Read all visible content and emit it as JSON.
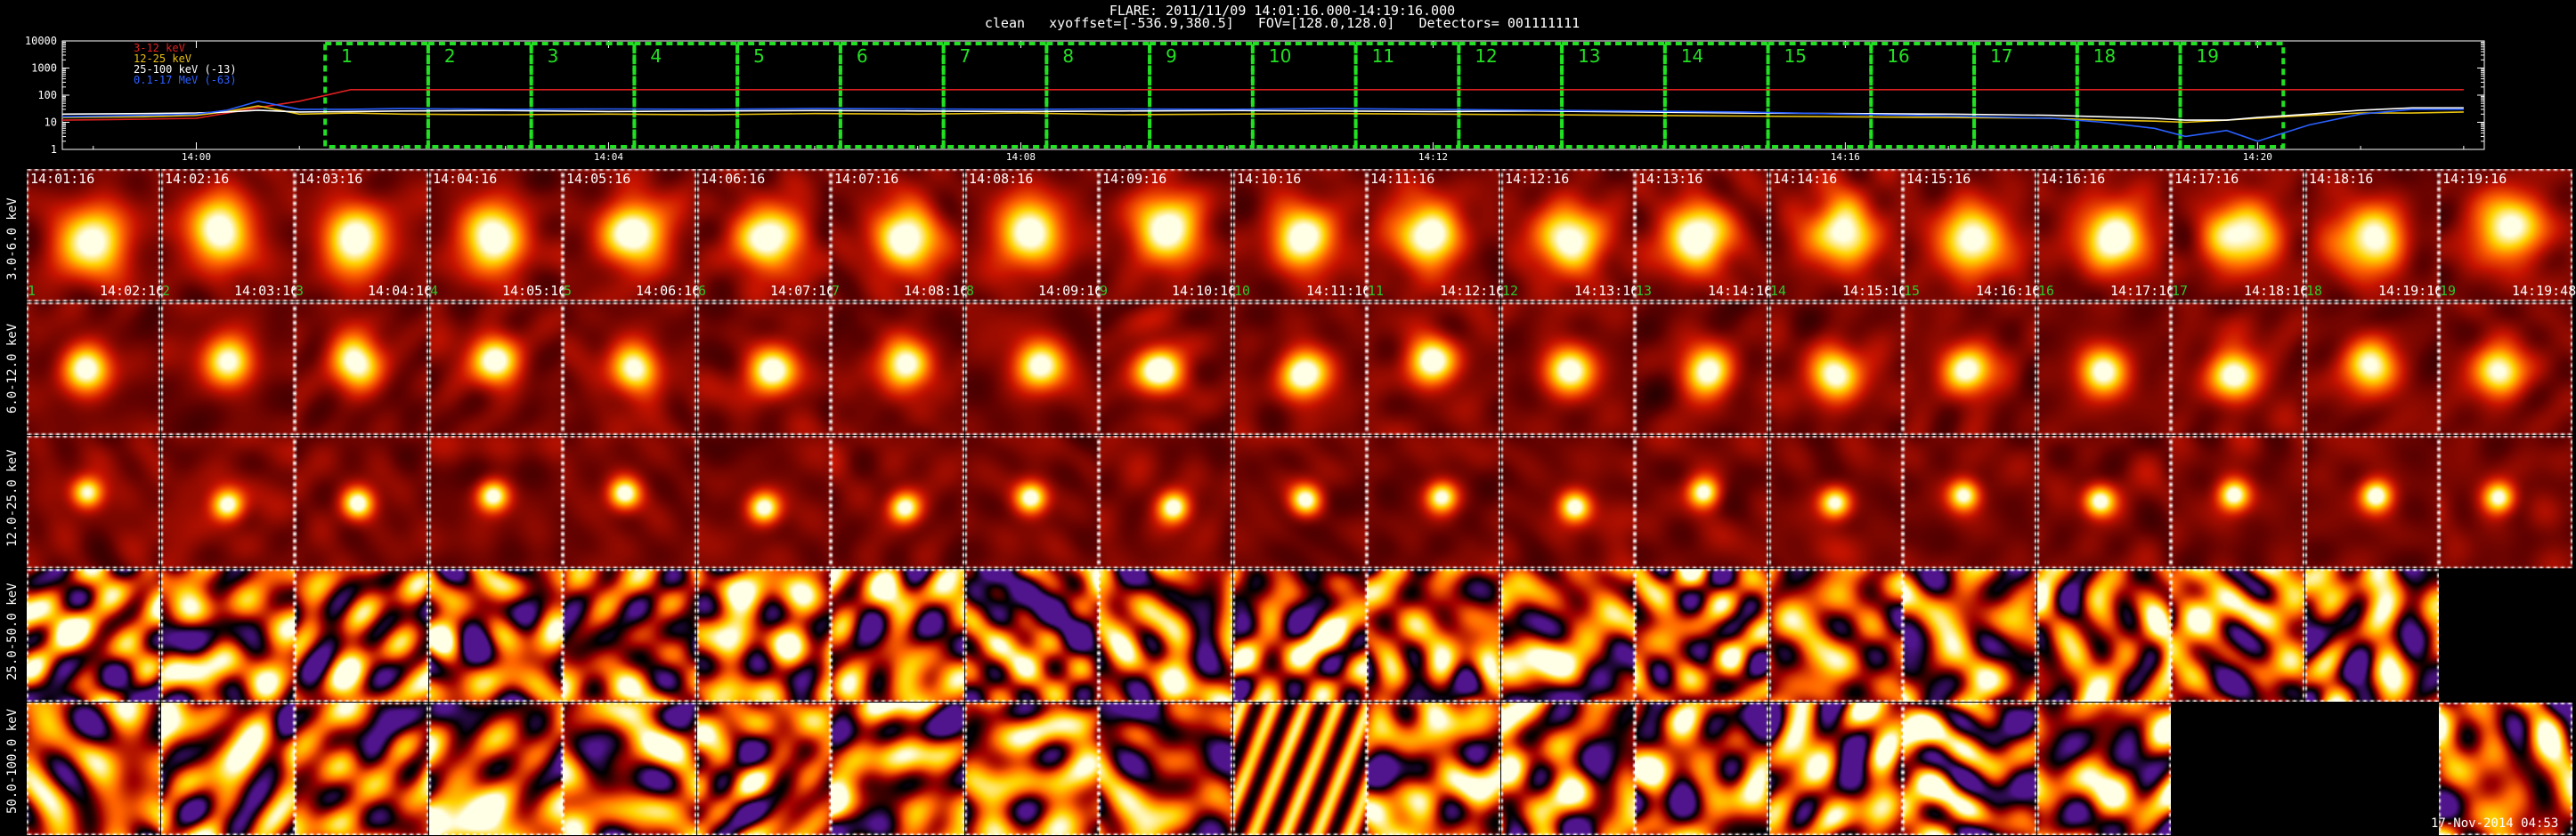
{
  "header": {
    "line1": "FLARE: 2011/11/09 14:01:16.000-14:19:16.000",
    "line2": "clean   xyoffset=[-536.9,380.5]   FOV=[128.0,128.0]   Detectors= 001111111"
  },
  "footer": "17-Nov-2014 04:53",
  "chart_data": [
    {
      "type": "line",
      "legend": [
        {
          "name": "3-12 keV",
          "color": "#e02020"
        },
        {
          "name": "12-25 keV",
          "color": "#e8c010"
        },
        {
          "name": "25-100 keV (-13)",
          "color": "#ffffff"
        },
        {
          "name": "0.1-17 MeV (-63)",
          "color": "#2a60ff"
        }
      ],
      "yscale": "log",
      "ylim": [
        1,
        10000
      ],
      "ytick_labels": [
        "1",
        "10",
        "100",
        "1000",
        "10000"
      ],
      "xtick_labels": [
        "14:00",
        "14:04",
        "14:08",
        "14:12",
        "14:16",
        "14:20"
      ],
      "xlim_minutes": [
        -1.3,
        22.2
      ],
      "time_x_minutes": [
        -1.3,
        -0.5,
        0.0,
        0.3,
        0.6,
        1.0,
        1.5,
        2,
        3,
        4,
        5,
        6,
        7,
        8,
        9,
        10,
        11,
        12,
        13,
        14,
        15,
        16,
        17,
        18,
        18.5,
        19,
        19.3,
        19.7,
        20,
        20.5,
        21,
        21.5,
        22
      ],
      "series": [
        {
          "name": "3-12 keV",
          "color": "#e02020",
          "values": [
            12,
            13,
            14,
            22,
            35,
            60,
            160,
            160,
            160,
            160,
            160,
            160,
            160,
            160,
            160,
            160,
            160,
            160,
            160,
            160,
            160,
            160,
            160,
            160,
            160,
            160,
            160,
            160,
            160,
            160,
            160,
            160,
            160
          ]
        },
        {
          "name": "12-25 keV",
          "color": "#e8c010",
          "values": [
            15,
            16,
            18,
            25,
            40,
            20,
            22,
            20,
            19,
            20,
            19,
            21,
            20,
            22,
            19,
            20,
            21,
            20,
            19,
            18,
            17,
            16,
            15,
            14,
            12,
            11,
            10,
            12,
            14,
            18,
            22,
            22,
            24
          ]
        },
        {
          "name": "25-100 keV (-13)",
          "color": "#ffffff",
          "values": [
            20,
            21,
            22,
            24,
            28,
            24,
            25,
            26,
            27,
            25,
            26,
            27,
            26,
            25,
            26,
            27,
            26,
            25,
            26,
            24,
            22,
            21,
            20,
            18,
            16,
            14,
            12,
            12,
            15,
            20,
            28,
            34,
            34
          ]
        },
        {
          "name": "0.1-17 MeV (-63)",
          "color": "#2a60ff",
          "values": [
            16,
            18,
            20,
            28,
            60,
            30,
            30,
            32,
            30,
            31,
            30,
            32,
            31,
            30,
            31,
            30,
            32,
            30,
            28,
            26,
            24,
            20,
            17,
            14,
            10,
            6,
            3,
            5,
            2,
            8,
            20,
            30,
            30
          ]
        }
      ],
      "intervals": [
        "1",
        "2",
        "3",
        "4",
        "5",
        "6",
        "7",
        "8",
        "9",
        "10",
        "11",
        "12",
        "13",
        "14",
        "15",
        "16",
        "17",
        "18",
        "19"
      ]
    },
    {
      "type": "heatmap",
      "energy_bands": [
        "3.0-6.0 keV",
        "6.0-12.0 keV",
        "12.0-25.0 keV",
        "25.0-50.0 keV",
        "50.0-100.0 keV"
      ],
      "start_times": [
        "14:01:16",
        "14:02:16",
        "14:03:16",
        "14:04:16",
        "14:05:16",
        "14:06:16",
        "14:07:16",
        "14:08:16",
        "14:09:16",
        "14:10:16",
        "14:11:16",
        "14:12:16",
        "14:13:16",
        "14:14:16",
        "14:15:16",
        "14:16:16",
        "14:17:16",
        "14:18:16",
        "14:19:16"
      ],
      "end_times": [
        "14:02:16",
        "14:03:16",
        "14:04:16",
        "14:05:16",
        "14:06:16",
        "14:07:16",
        "14:08:16",
        "14:09:16",
        "14:10:16",
        "14:11:16",
        "14:12:16",
        "14:13:16",
        "14:14:16",
        "14:15:16",
        "14:16:16",
        "14:17:16",
        "14:18:16",
        "14:19:16",
        "14:19:48"
      ],
      "panel_numbers": [
        "1",
        "2",
        "3",
        "4",
        "5",
        "6",
        "7",
        "8",
        "9",
        "10",
        "11",
        "12",
        "13",
        "14",
        "15",
        "16",
        "17",
        "18",
        "19"
      ],
      "colormap": [
        "#000000",
        "#5a0000",
        "#c81400",
        "#ff6400",
        "#ffd200",
        "#ffffe6"
      ],
      "noise_colormap": [
        "#50148c",
        "#000000",
        "#a00000",
        "#ff6400",
        "#ffd200",
        "#ffffe6"
      ],
      "missing_panels": [
        [
          3,
          18
        ],
        [
          4,
          16
        ],
        [
          4,
          17
        ]
      ],
      "source_sizes": [
        0.3,
        0.22,
        0.14
      ]
    }
  ]
}
